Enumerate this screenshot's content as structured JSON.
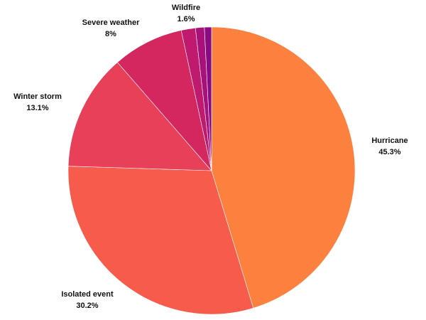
{
  "chart_data": {
    "type": "pie",
    "title": "",
    "slices": [
      {
        "label": "Hurricane",
        "value": 45.3,
        "display": "45.3%",
        "color": "#fc803e"
      },
      {
        "label": "Isolated event",
        "value": 30.2,
        "display": "30.2%",
        "color": "#f75b4c"
      },
      {
        "label": "Winter storm",
        "value": 13.1,
        "display": "13.1%",
        "color": "#e9405a"
      },
      {
        "label": "Severe weather",
        "value": 8.0,
        "display": "8%",
        "color": "#d4265f"
      },
      {
        "label": "Wildfire",
        "value": 1.6,
        "display": "1.6%",
        "color": "#c01a6e"
      },
      {
        "label": "",
        "value": 1.0,
        "display": "",
        "color": "#a8107a"
      },
      {
        "label": "",
        "value": 0.8,
        "display": "",
        "color": "#8a0a82"
      }
    ],
    "start_angle": "12 o'clock",
    "direction": "clockwise",
    "legend": "none"
  }
}
